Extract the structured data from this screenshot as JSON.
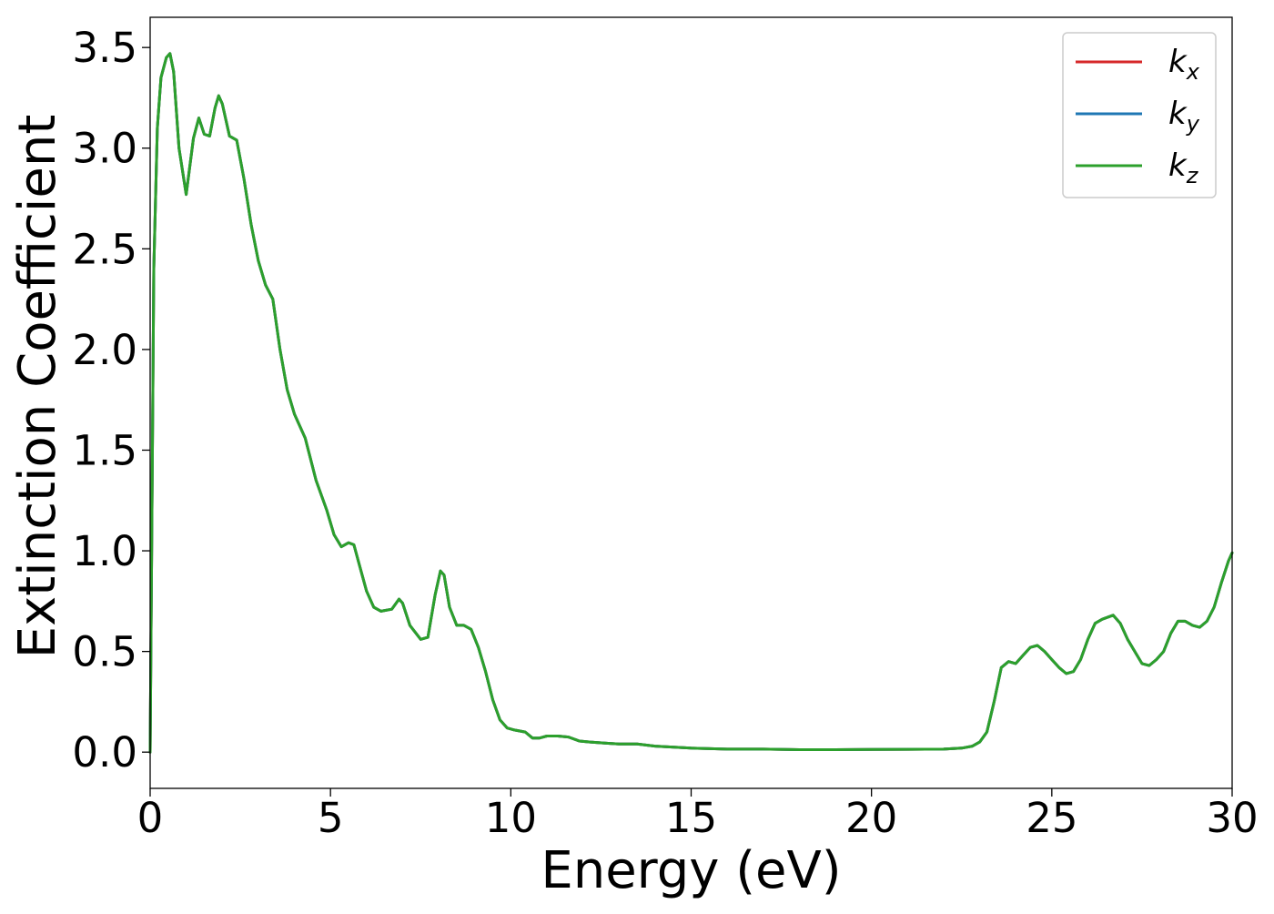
{
  "chart_data": {
    "type": "line",
    "title": "",
    "xlabel": "Energy (eV)",
    "ylabel": "Extinction Coefficient",
    "xlim": [
      0,
      30
    ],
    "ylim": [
      -0.18,
      3.65
    ],
    "xticks": [
      0,
      5,
      10,
      15,
      20,
      25,
      30
    ],
    "xtick_labels": [
      "0",
      "5",
      "10",
      "15",
      "20",
      "25",
      "30"
    ],
    "yticks": [
      0.0,
      0.5,
      1.0,
      1.5,
      2.0,
      2.5,
      3.0,
      3.5
    ],
    "ytick_labels": [
      "0.0",
      "0.5",
      "1.0",
      "1.5",
      "2.0",
      "2.5",
      "3.0",
      "3.5"
    ],
    "grid": false,
    "legend_position": "top-right",
    "x": [
      0,
      0.1,
      0.2,
      0.3,
      0.45,
      0.55,
      0.65,
      0.8,
      1.0,
      1.2,
      1.35,
      1.5,
      1.65,
      1.8,
      1.9,
      2.0,
      2.2,
      2.4,
      2.6,
      2.8,
      3.0,
      3.2,
      3.4,
      3.6,
      3.8,
      4.0,
      4.3,
      4.6,
      4.9,
      5.1,
      5.3,
      5.5,
      5.65,
      5.8,
      6.0,
      6.2,
      6.4,
      6.7,
      6.9,
      7.0,
      7.2,
      7.5,
      7.7,
      7.9,
      8.05,
      8.15,
      8.3,
      8.5,
      8.7,
      8.9,
      9.1,
      9.3,
      9.5,
      9.7,
      9.9,
      10.1,
      10.4,
      10.6,
      10.8,
      11.0,
      11.3,
      11.6,
      11.9,
      12.2,
      12.6,
      13.0,
      13.5,
      14.0,
      15.0,
      16.0,
      17.0,
      18.0,
      19.0,
      20.0,
      21.0,
      22.0,
      22.5,
      22.8,
      23.0,
      23.2,
      23.4,
      23.6,
      23.8,
      24.0,
      24.2,
      24.4,
      24.6,
      24.8,
      25.0,
      25.2,
      25.4,
      25.6,
      25.8,
      26.0,
      26.2,
      26.4,
      26.7,
      26.9,
      27.1,
      27.3,
      27.5,
      27.7,
      27.9,
      28.1,
      28.3,
      28.5,
      28.7,
      28.9,
      29.1,
      29.3,
      29.5,
      29.7,
      29.9,
      30.0
    ],
    "series": [
      {
        "name": "k_x",
        "color": "#d62728"
      },
      {
        "name": "k_y",
        "color": "#1f77b4"
      },
      {
        "name": "k_z",
        "color": "#2ca02c"
      }
    ],
    "y": [
      0.0,
      2.4,
      3.1,
      3.35,
      3.45,
      3.47,
      3.38,
      3.0,
      2.77,
      3.05,
      3.15,
      3.07,
      3.06,
      3.2,
      3.26,
      3.22,
      3.06,
      3.04,
      2.85,
      2.62,
      2.44,
      2.32,
      2.25,
      2.0,
      1.8,
      1.68,
      1.56,
      1.35,
      1.2,
      1.08,
      1.02,
      1.04,
      1.03,
      0.93,
      0.8,
      0.72,
      0.7,
      0.71,
      0.76,
      0.74,
      0.63,
      0.56,
      0.57,
      0.78,
      0.9,
      0.88,
      0.72,
      0.63,
      0.63,
      0.61,
      0.52,
      0.4,
      0.26,
      0.16,
      0.12,
      0.11,
      0.1,
      0.07,
      0.07,
      0.08,
      0.08,
      0.075,
      0.055,
      0.05,
      0.045,
      0.04,
      0.04,
      0.03,
      0.02,
      0.015,
      0.015,
      0.012,
      0.012,
      0.013,
      0.014,
      0.015,
      0.02,
      0.03,
      0.05,
      0.1,
      0.25,
      0.42,
      0.45,
      0.44,
      0.48,
      0.52,
      0.53,
      0.5,
      0.46,
      0.42,
      0.39,
      0.4,
      0.46,
      0.56,
      0.64,
      0.66,
      0.68,
      0.64,
      0.56,
      0.5,
      0.44,
      0.43,
      0.46,
      0.5,
      0.59,
      0.65,
      0.65,
      0.63,
      0.62,
      0.65,
      0.72,
      0.84,
      0.95,
      0.99
    ]
  }
}
